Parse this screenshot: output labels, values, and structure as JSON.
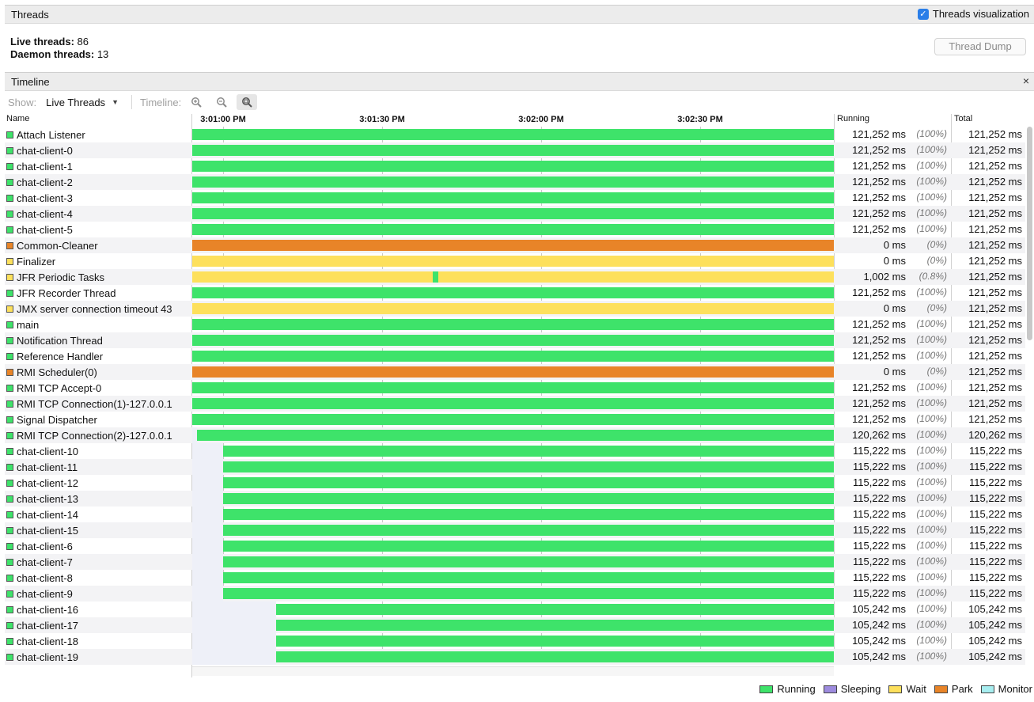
{
  "threads_panel": {
    "title": "Threads",
    "viz_label": "Threads visualization",
    "live_label": "Live threads:",
    "live_value": "86",
    "daemon_label": "Daemon threads:",
    "daemon_value": "13",
    "dump_button": "Thread Dump"
  },
  "timeline_panel": {
    "title": "Timeline",
    "close": "×",
    "show_label": "Show:",
    "show_value": "Live Threads",
    "timeline_label": "Timeline:"
  },
  "columns": {
    "name": "Name",
    "running": "Running",
    "total": "Total"
  },
  "ticks": [
    "3:01:00 PM",
    "3:01:30 PM",
    "3:02:00 PM",
    "3:02:30 PM"
  ],
  "colors": {
    "Running": "#3ee36a",
    "Sleeping": "#9d8bde",
    "Wait": "#fde05c",
    "Park": "#e88428",
    "Monitor": "#a7eef0"
  },
  "legend": [
    "Running",
    "Sleeping",
    "Wait",
    "Park",
    "Monitor"
  ],
  "threads": [
    {
      "name": "Attach Listener",
      "state": "Running",
      "start": 0,
      "running": "121,252 ms",
      "pct": "(100%)",
      "total": "121,252 ms"
    },
    {
      "name": "chat-client-0",
      "state": "Running",
      "start": 0,
      "running": "121,252 ms",
      "pct": "(100%)",
      "total": "121,252 ms"
    },
    {
      "name": "chat-client-1",
      "state": "Running",
      "start": 0,
      "running": "121,252 ms",
      "pct": "(100%)",
      "total": "121,252 ms"
    },
    {
      "name": "chat-client-2",
      "state": "Running",
      "start": 0,
      "running": "121,252 ms",
      "pct": "(100%)",
      "total": "121,252 ms"
    },
    {
      "name": "chat-client-3",
      "state": "Running",
      "start": 0,
      "running": "121,252 ms",
      "pct": "(100%)",
      "total": "121,252 ms"
    },
    {
      "name": "chat-client-4",
      "state": "Running",
      "start": 0,
      "running": "121,252 ms",
      "pct": "(100%)",
      "total": "121,252 ms"
    },
    {
      "name": "chat-client-5",
      "state": "Running",
      "start": 0,
      "running": "121,252 ms",
      "pct": "(100%)",
      "total": "121,252 ms"
    },
    {
      "name": "Common-Cleaner",
      "state": "Park",
      "start": 0,
      "running": "0 ms",
      "pct": "(0%)",
      "total": "121,252 ms"
    },
    {
      "name": "Finalizer",
      "state": "Wait",
      "start": 0,
      "running": "0 ms",
      "pct": "(0%)",
      "total": "121,252 ms"
    },
    {
      "name": "JFR Periodic Tasks",
      "state": "Wait",
      "start": 0,
      "running": "1,002 ms",
      "pct": "(0.8%)",
      "total": "121,252 ms",
      "blip": 0.3745
    },
    {
      "name": "JFR Recorder Thread",
      "state": "Running",
      "start": 0,
      "running": "121,252 ms",
      "pct": "(100%)",
      "total": "121,252 ms"
    },
    {
      "name": "JMX server connection timeout 43",
      "state": "Wait",
      "start": 0,
      "running": "0 ms",
      "pct": "(0%)",
      "total": "121,252 ms"
    },
    {
      "name": "main",
      "state": "Running",
      "start": 0,
      "running": "121,252 ms",
      "pct": "(100%)",
      "total": "121,252 ms"
    },
    {
      "name": "Notification Thread",
      "state": "Running",
      "start": 0,
      "running": "121,252 ms",
      "pct": "(100%)",
      "total": "121,252 ms"
    },
    {
      "name": "Reference Handler",
      "state": "Running",
      "start": 0,
      "running": "121,252 ms",
      "pct": "(100%)",
      "total": "121,252 ms"
    },
    {
      "name": "RMI Scheduler(0)",
      "state": "Park",
      "start": 0,
      "running": "0 ms",
      "pct": "(0%)",
      "total": "121,252 ms"
    },
    {
      "name": "RMI TCP Accept-0",
      "state": "Running",
      "start": 0,
      "running": "121,252 ms",
      "pct": "(100%)",
      "total": "121,252 ms"
    },
    {
      "name": "RMI TCP Connection(1)-127.0.0.1",
      "state": "Running",
      "start": 0,
      "running": "121,252 ms",
      "pct": "(100%)",
      "total": "121,252 ms"
    },
    {
      "name": "Signal Dispatcher",
      "state": "Running",
      "start": 0,
      "running": "121,252 ms",
      "pct": "(100%)",
      "total": "121,252 ms"
    },
    {
      "name": "RMI TCP Connection(2)-127.0.0.1",
      "state": "Running",
      "start": 0.0068,
      "running": "120,262 ms",
      "pct": "(100%)",
      "total": "120,262 ms"
    },
    {
      "name": "chat-client-10",
      "state": "Running",
      "start": 0.0487,
      "running": "115,222 ms",
      "pct": "(100%)",
      "total": "115,222 ms"
    },
    {
      "name": "chat-client-11",
      "state": "Running",
      "start": 0.0487,
      "running": "115,222 ms",
      "pct": "(100%)",
      "total": "115,222 ms"
    },
    {
      "name": "chat-client-12",
      "state": "Running",
      "start": 0.0487,
      "running": "115,222 ms",
      "pct": "(100%)",
      "total": "115,222 ms"
    },
    {
      "name": "chat-client-13",
      "state": "Running",
      "start": 0.0487,
      "running": "115,222 ms",
      "pct": "(100%)",
      "total": "115,222 ms"
    },
    {
      "name": "chat-client-14",
      "state": "Running",
      "start": 0.0487,
      "running": "115,222 ms",
      "pct": "(100%)",
      "total": "115,222 ms"
    },
    {
      "name": "chat-client-15",
      "state": "Running",
      "start": 0.0487,
      "running": "115,222 ms",
      "pct": "(100%)",
      "total": "115,222 ms"
    },
    {
      "name": "chat-client-6",
      "state": "Running",
      "start": 0.0487,
      "running": "115,222 ms",
      "pct": "(100%)",
      "total": "115,222 ms"
    },
    {
      "name": "chat-client-7",
      "state": "Running",
      "start": 0.0487,
      "running": "115,222 ms",
      "pct": "(100%)",
      "total": "115,222 ms"
    },
    {
      "name": "chat-client-8",
      "state": "Running",
      "start": 0.0487,
      "running": "115,222 ms",
      "pct": "(100%)",
      "total": "115,222 ms"
    },
    {
      "name": "chat-client-9",
      "state": "Running",
      "start": 0.0487,
      "running": "115,222 ms",
      "pct": "(100%)",
      "total": "115,222 ms"
    },
    {
      "name": "chat-client-16",
      "state": "Running",
      "start": 0.1313,
      "running": "105,242 ms",
      "pct": "(100%)",
      "total": "105,242 ms"
    },
    {
      "name": "chat-client-17",
      "state": "Running",
      "start": 0.1313,
      "running": "105,242 ms",
      "pct": "(100%)",
      "total": "105,242 ms"
    },
    {
      "name": "chat-client-18",
      "state": "Running",
      "start": 0.1313,
      "running": "105,242 ms",
      "pct": "(100%)",
      "total": "105,242 ms"
    },
    {
      "name": "chat-client-19",
      "state": "Running",
      "start": 0.1313,
      "running": "105,242 ms",
      "pct": "(100%)",
      "total": "105,242 ms"
    }
  ]
}
